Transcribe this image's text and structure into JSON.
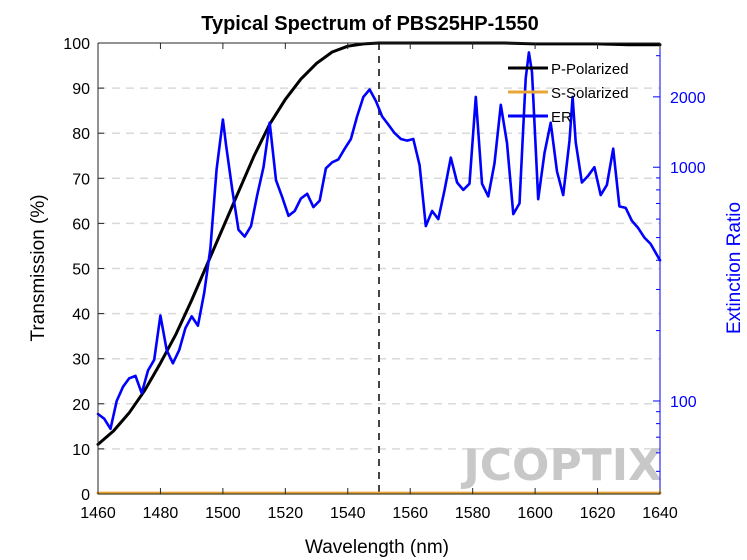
{
  "chart_data": {
    "type": "line",
    "title": "Typical Spectrum of PBS25HP-1550",
    "xlabel": "Wavelength (nm)",
    "ylabel": "Transmission (%)",
    "y2label": "Extinction Ratio",
    "xlim": [
      1460,
      1640
    ],
    "ylim": [
      0,
      100
    ],
    "y2lim": [
      40,
      3400
    ],
    "y2scale": "log",
    "grid": "horizontal dashed",
    "legend_position": "top-right",
    "x_ticks": [
      "1460",
      "1480",
      "1500",
      "1520",
      "1540",
      "1560",
      "1580",
      "1600",
      "1620",
      "1640"
    ],
    "y_ticks": [
      "0",
      "10",
      "20",
      "30",
      "40",
      "50",
      "60",
      "70",
      "80",
      "90",
      "100"
    ],
    "y2_ticks": [
      "100",
      "1000",
      "2000"
    ],
    "y2_tick_values": [
      100,
      1000,
      2000
    ],
    "y2_minor_ticks": [
      50,
      60,
      70,
      80,
      90,
      200,
      300,
      400,
      500,
      600,
      700,
      800,
      900,
      3000
    ],
    "vline_x": 1550,
    "watermark": "JCOPTIX",
    "series": [
      {
        "name": "P-Polarized",
        "color": "#000000",
        "axis": "left",
        "x": [
          1460,
          1465,
          1470,
          1475,
          1480,
          1485,
          1490,
          1495,
          1500,
          1505,
          1510,
          1515,
          1520,
          1525,
          1530,
          1535,
          1540,
          1545,
          1550,
          1560,
          1570,
          1580,
          1590,
          1600,
          1610,
          1620,
          1630,
          1640
        ],
        "y": [
          11,
          14,
          18,
          23,
          29,
          35.5,
          43,
          51,
          59,
          67,
          75,
          82,
          87.5,
          92,
          95.5,
          98,
          99.3,
          99.8,
          100,
          100,
          100,
          100,
          100,
          99.8,
          99.8,
          99.8,
          99.6,
          99.6
        ]
      },
      {
        "name": "S-Solarized",
        "color": "#e8a637",
        "axis": "left",
        "x": [
          1460,
          1640
        ],
        "y": [
          0.2,
          0.2
        ]
      },
      {
        "name": "ER",
        "color": "#0000ff",
        "axis": "right",
        "x": [
          1460,
          1462,
          1464,
          1466,
          1468,
          1470,
          1472,
          1474,
          1476,
          1478,
          1480,
          1482,
          1484,
          1486,
          1488,
          1490,
          1492,
          1494,
          1496,
          1498,
          1500,
          1501,
          1503,
          1505,
          1507,
          1509,
          1511,
          1513,
          1515,
          1517,
          1519,
          1521,
          1523,
          1525,
          1527,
          1529,
          1531,
          1533,
          1535,
          1537,
          1539,
          1541,
          1543,
          1545,
          1547,
          1549,
          1551,
          1553,
          1555,
          1557,
          1559,
          1561,
          1563,
          1565,
          1567,
          1569,
          1571,
          1573,
          1575,
          1577,
          1579,
          1581,
          1583,
          1585,
          1587,
          1589,
          1591,
          1593,
          1595,
          1597,
          1598,
          1599,
          1601,
          1603,
          1605,
          1607,
          1609,
          1611,
          1612,
          1613,
          1615,
          1617,
          1619,
          1621,
          1623,
          1625,
          1627,
          1629,
          1631,
          1633,
          1635,
          1637,
          1640
        ],
        "y": [
          88,
          84,
          76,
          100,
          115,
          125,
          128,
          108,
          135,
          150,
          232,
          165,
          145,
          165,
          205,
          230,
          210,
          290,
          450,
          980,
          1600,
          1250,
          800,
          540,
          505,
          560,
          760,
          1000,
          1550,
          880,
          745,
          620,
          650,
          735,
          770,
          675,
          720,
          990,
          1050,
          1080,
          1200,
          1320,
          1650,
          2000,
          2150,
          1920,
          1650,
          1520,
          1400,
          1320,
          1300,
          1320,
          1020,
          560,
          650,
          600,
          800,
          1100,
          860,
          800,
          850,
          2000,
          850,
          750,
          1040,
          1850,
          1270,
          630,
          700,
          2400,
          3100,
          2550,
          730,
          1150,
          1550,
          960,
          760,
          1300,
          2000,
          1280,
          860,
          920,
          1000,
          760,
          840,
          1200,
          680,
          670,
          590,
          550,
          500,
          470,
          400
        ]
      }
    ]
  }
}
